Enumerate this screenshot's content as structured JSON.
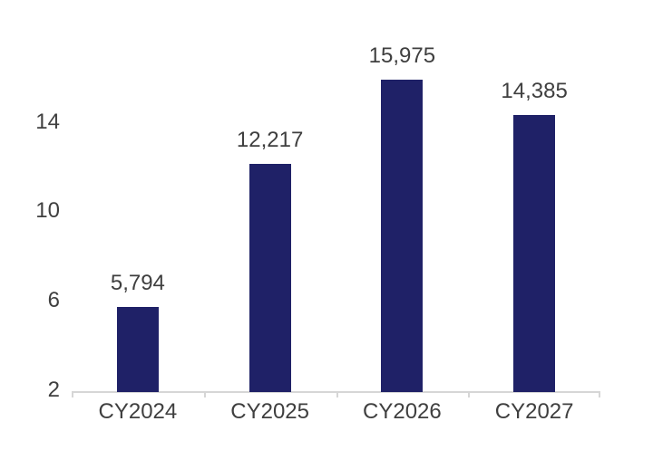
{
  "chart_data": {
    "type": "bar",
    "title": "",
    "xlabel": "",
    "ylabel": "",
    "categories": [
      "CY2024",
      "CY2025",
      "CY2026",
      "CY2027"
    ],
    "values": [
      5794,
      12217,
      15975,
      14385
    ],
    "value_labels": [
      "5,794",
      "12,217",
      "15,975",
      "14,385"
    ],
    "y_ticks": [
      2,
      6,
      10,
      14
    ],
    "y_tick_labels": [
      "2",
      "6",
      "10",
      "14"
    ],
    "ylim": [
      2,
      16.2
    ],
    "y_axis_unit_divisor": 1000,
    "grid": false,
    "legend": "none",
    "bar_color": "#1F2167",
    "text_color": "#3F3F3F",
    "axis_line_color": "#D6D6D6",
    "background_color": "#FFFFFF"
  }
}
